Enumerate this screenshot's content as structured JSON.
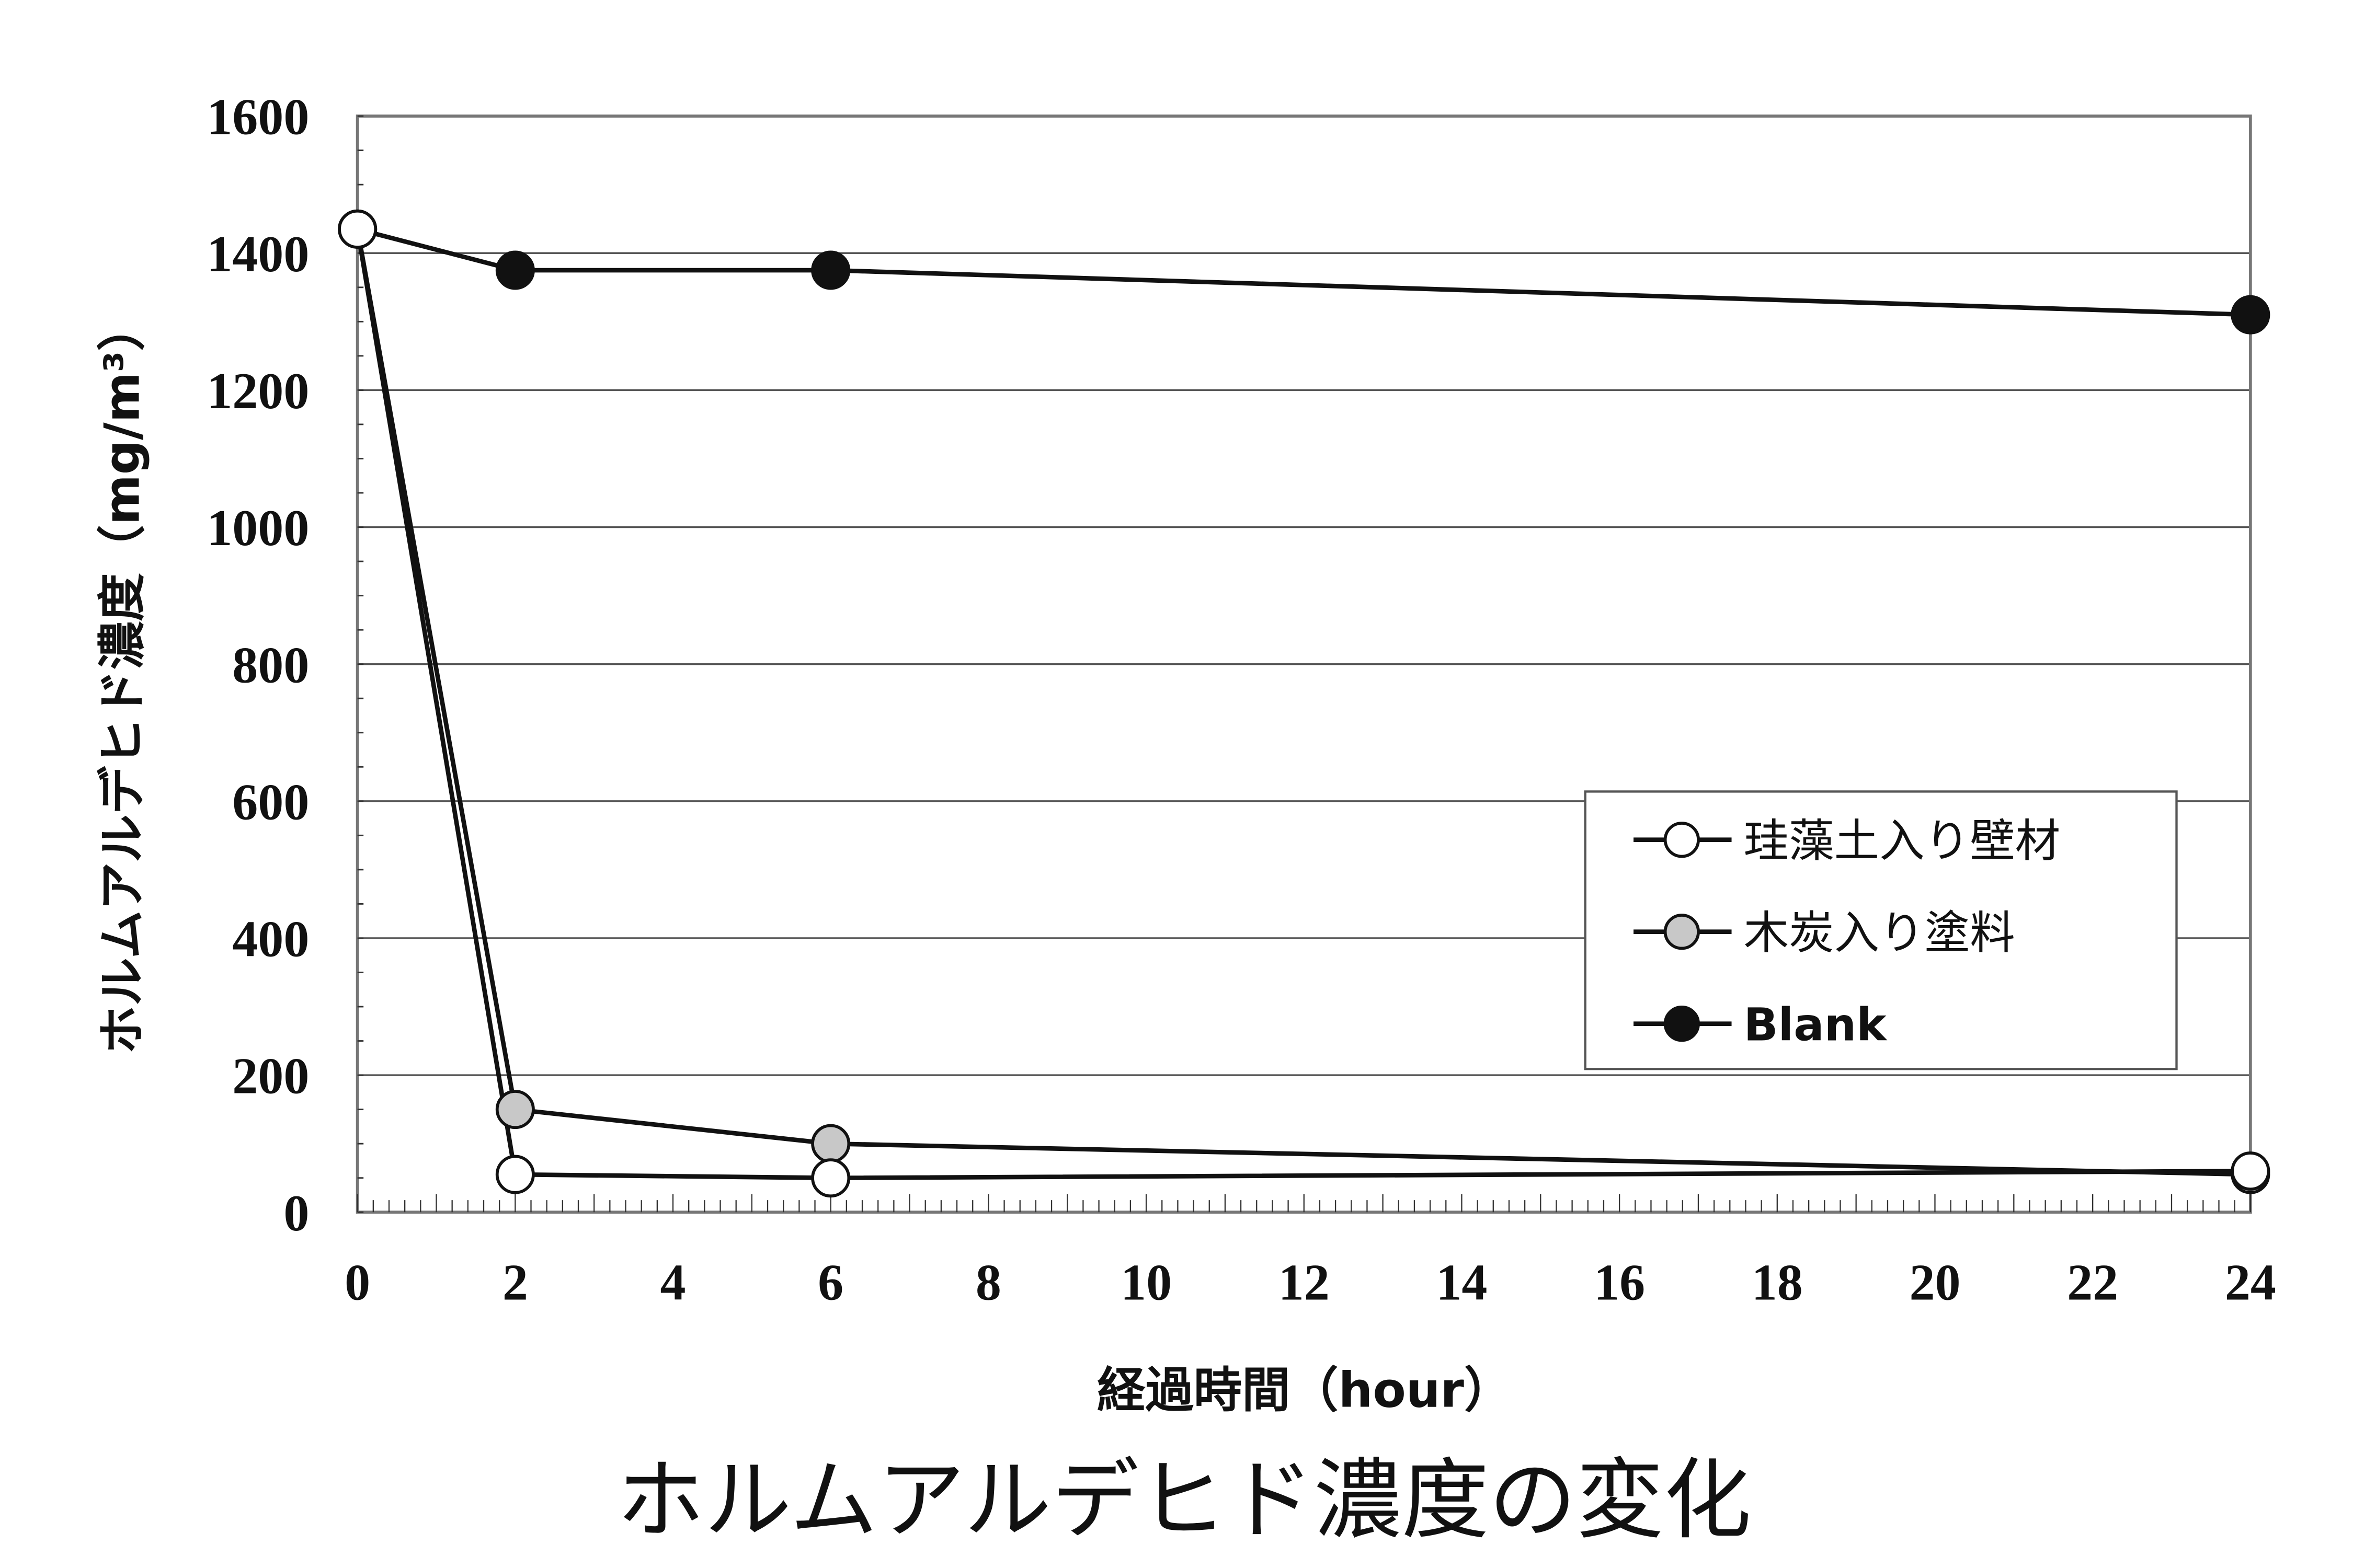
{
  "chart_data": {
    "type": "line",
    "title": "ホルムアルデヒド濃度の変化",
    "xlabel": "経過時間（hour）",
    "ylabel": "ホルムアルデヒド濃度（mg/m³）",
    "xlim": [
      0,
      24
    ],
    "ylim": [
      0,
      1600
    ],
    "xticks": [
      0,
      2,
      4,
      6,
      8,
      10,
      12,
      14,
      16,
      18,
      20,
      22,
      24
    ],
    "yticks": [
      0,
      200,
      400,
      600,
      800,
      1000,
      1200,
      1400,
      1600
    ],
    "grid": "horizontal",
    "legend_position": "center-right",
    "series": [
      {
        "name": "珪藻土入り壁材",
        "marker": "open-circle",
        "fill": "#ffffff",
        "x": [
          0,
          2,
          6,
          24
        ],
        "y": [
          1435,
          55,
          50,
          60
        ]
      },
      {
        "name": "木炭入り塗料",
        "marker": "gray-circle",
        "fill": "#c8c8c8",
        "x": [
          0,
          2,
          6,
          24
        ],
        "y": [
          1435,
          150,
          100,
          55
        ]
      },
      {
        "name": "Blank",
        "marker": "filled-circle",
        "fill": "#111111",
        "x": [
          0,
          2,
          6,
          24
        ],
        "y": [
          1435,
          1375,
          1375,
          1310
        ]
      }
    ]
  }
}
